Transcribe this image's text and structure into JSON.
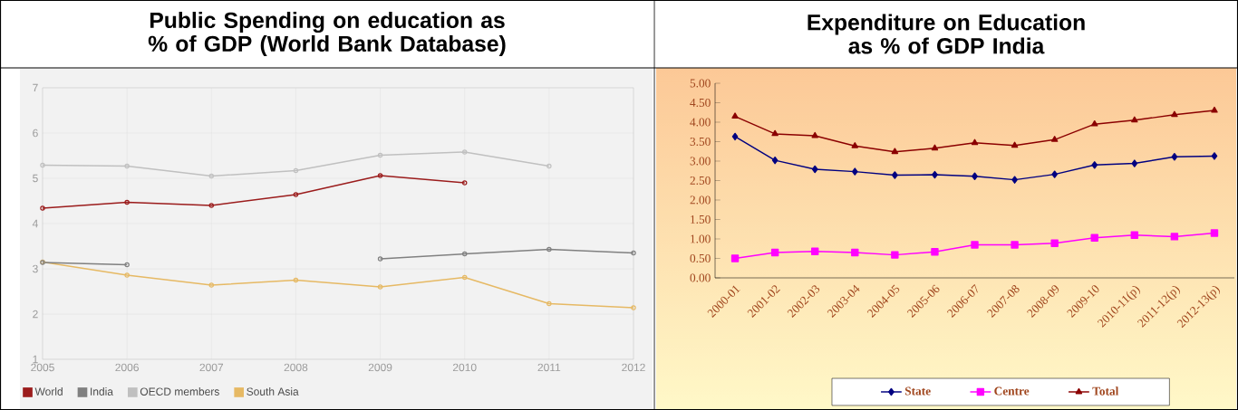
{
  "chart_data": [
    {
      "type": "line",
      "title": "Public Spending on education as % of GDP (World Bank Database)",
      "x": [
        2005,
        2006,
        2007,
        2008,
        2009,
        2010,
        2011,
        2012
      ],
      "xlim": [
        2005,
        2012
      ],
      "xticks": [
        2005,
        2006,
        2007,
        2008,
        2009,
        2010,
        2011,
        2012
      ],
      "ylim": [
        1,
        7
      ],
      "yticks": [
        1,
        2,
        3,
        4,
        5,
        6,
        7
      ],
      "grid": true,
      "legend": "bottom left",
      "marker": "circle",
      "series": [
        {
          "name": "World",
          "color": "#9b1c1c",
          "values": [
            4.34,
            4.47,
            4.4,
            4.64,
            5.06,
            4.9,
            null,
            null
          ]
        },
        {
          "name": "India",
          "color": "#808080",
          "values": [
            3.14,
            3.09,
            null,
            null,
            3.22,
            3.33,
            3.43,
            3.35
          ]
        },
        {
          "name": "OECD members",
          "color": "#c0c0c0",
          "values": [
            5.29,
            5.27,
            5.05,
            5.17,
            5.51,
            5.58,
            5.27,
            null
          ]
        },
        {
          "name": "South Asia",
          "color": "#e6b964",
          "values": [
            3.15,
            2.86,
            2.64,
            2.75,
            2.6,
            2.81,
            2.23,
            2.14
          ]
        }
      ]
    },
    {
      "type": "line",
      "title": "Expenditure on Education as % of GDP India",
      "categories": [
        "2000-01",
        "2001-02",
        "2002-03",
        "2003-04",
        "2004-05",
        "2005-06",
        "2006-07",
        "2007-08",
        "2008-09",
        "2009-10",
        "2010-11(p)",
        "2011-12(p)",
        "2012-13(p)"
      ],
      "ylim": [
        0,
        5
      ],
      "yticks": [
        {
          "value": 0,
          "label": "0.00"
        },
        {
          "value": 0.5,
          "label": "0.50"
        },
        {
          "value": 1,
          "label": "1.00"
        },
        {
          "value": 1.5,
          "label": "1.50"
        },
        {
          "value": 2,
          "label": "2.00"
        },
        {
          "value": 2.5,
          "label": "2.50"
        },
        {
          "value": 3,
          "label": "3.00"
        },
        {
          "value": 3.5,
          "label": "3.50"
        },
        {
          "value": 4,
          "label": "4.00"
        },
        {
          "value": 4.5,
          "label": "4.50"
        },
        {
          "value": 5,
          "label": "5.00"
        }
      ],
      "legend": "bottom",
      "series": [
        {
          "name": "State",
          "color": "#000080",
          "marker": "diamond",
          "values": [
            3.63,
            3.02,
            2.79,
            2.73,
            2.64,
            2.65,
            2.61,
            2.52,
            2.66,
            2.9,
            2.94,
            3.11,
            3.13
          ]
        },
        {
          "name": "Centre",
          "color": "#ff00ff",
          "marker": "square",
          "values": [
            0.5,
            0.65,
            0.68,
            0.65,
            0.59,
            0.67,
            0.85,
            0.85,
            0.89,
            1.03,
            1.1,
            1.06,
            1.15
          ]
        },
        {
          "name": "Total",
          "color": "#8b0000",
          "marker": "triangle",
          "values": [
            4.15,
            3.7,
            3.65,
            3.39,
            3.24,
            3.33,
            3.47,
            3.4,
            3.55,
            3.95,
            4.05,
            4.19,
            4.3
          ]
        }
      ]
    }
  ]
}
